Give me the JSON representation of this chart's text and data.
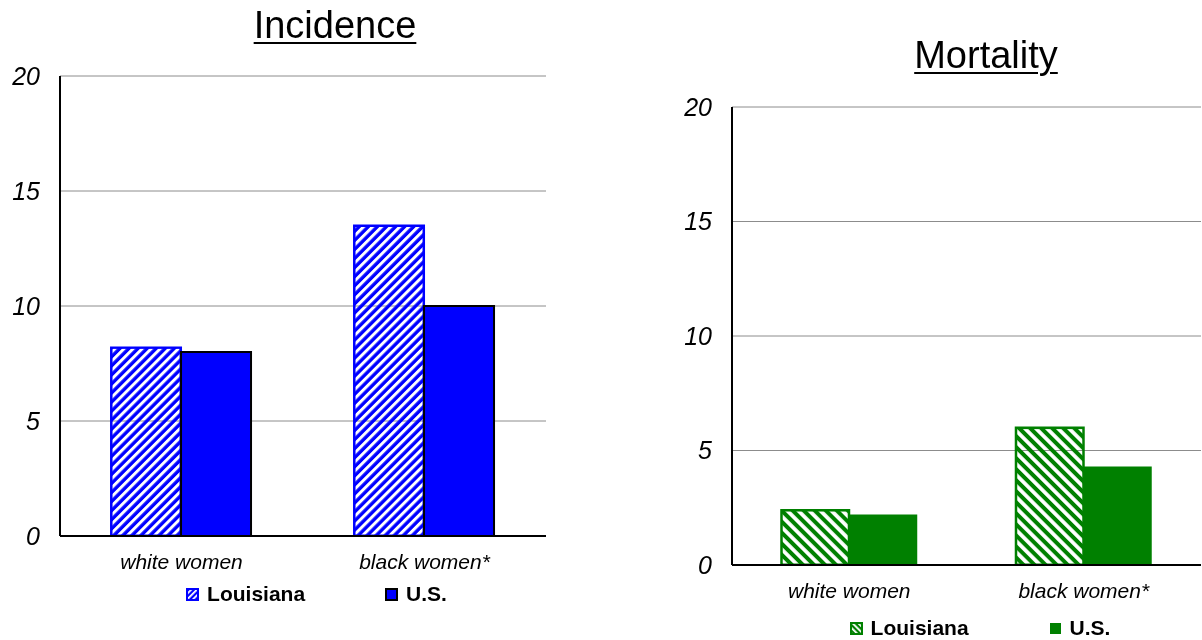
{
  "chart_data": [
    {
      "type": "bar",
      "title": "Incidence",
      "categories": [
        "white women",
        "black women*"
      ],
      "series": [
        {
          "name": "Louisiana",
          "color": "#0000ff",
          "values": [
            8.2,
            13.5
          ]
        },
        {
          "name": "U.S.",
          "color": "#0000ff",
          "values": [
            8.0,
            10.0
          ]
        }
      ],
      "ylim": [
        0,
        20
      ],
      "yticks": [
        0,
        5,
        10,
        15,
        20
      ],
      "grid": "y",
      "legend": "bottom"
    },
    {
      "type": "bar",
      "title": "Mortality",
      "categories": [
        "white women",
        "black women*"
      ],
      "series": [
        {
          "name": "Louisiana",
          "color": "#008000",
          "values": [
            2.4,
            6.0
          ]
        },
        {
          "name": "U.S.",
          "color": "#008000",
          "values": [
            2.2,
            4.3
          ]
        }
      ],
      "ylim": [
        0,
        20
      ],
      "yticks": [
        0,
        5,
        10,
        15,
        20
      ],
      "grid": "y",
      "legend": "bottom"
    }
  ]
}
